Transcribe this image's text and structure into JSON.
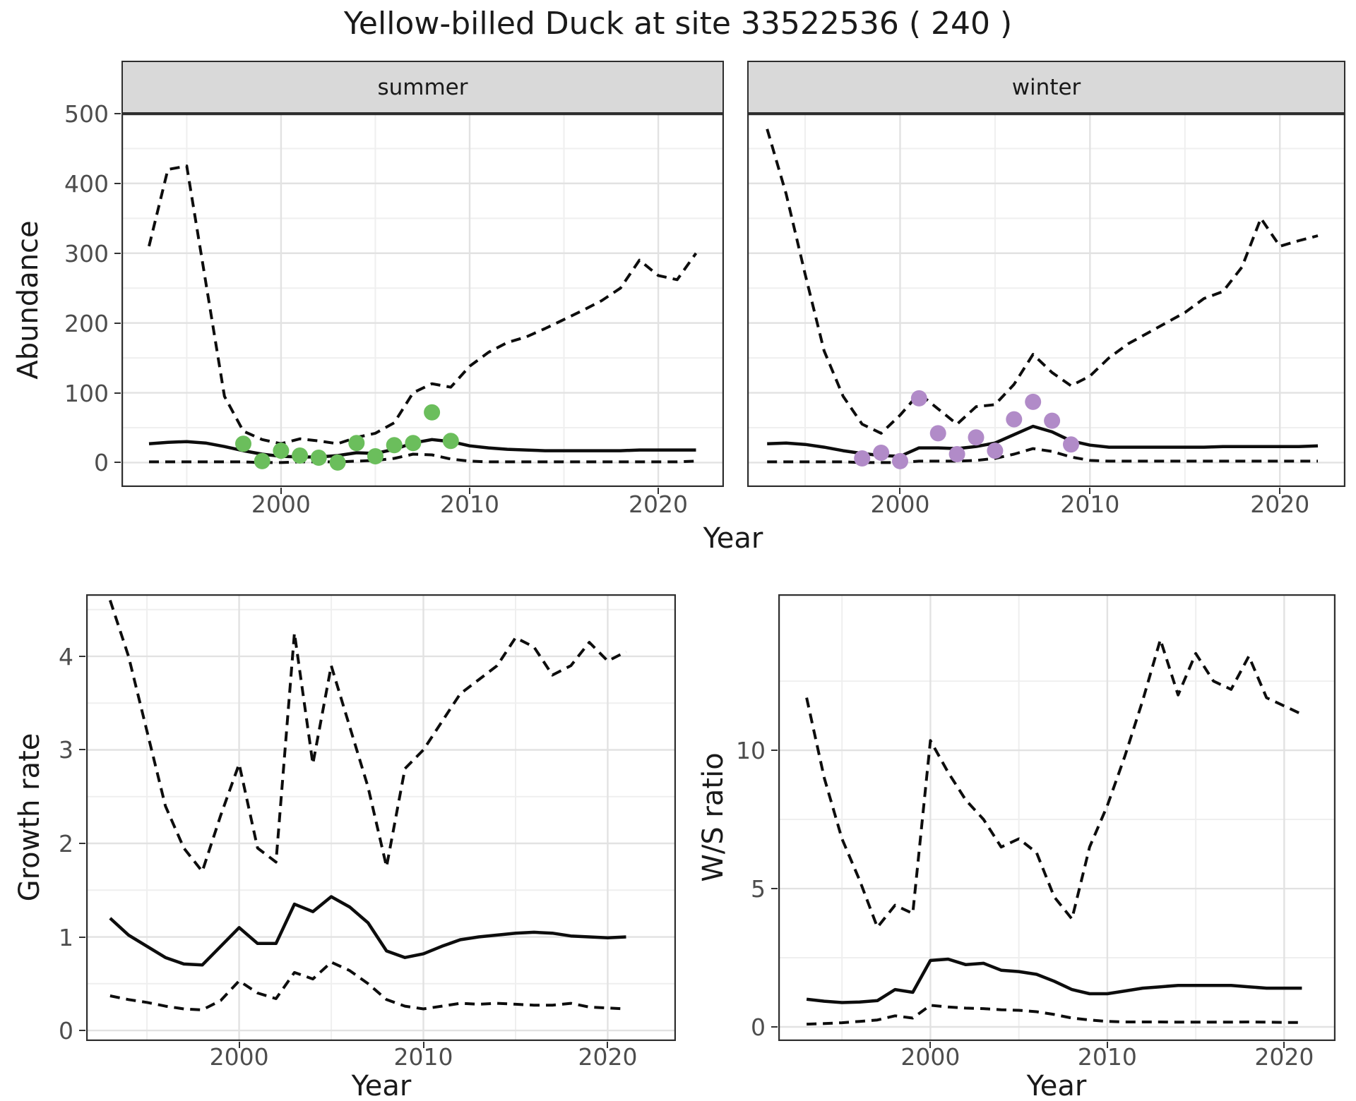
{
  "title": "Yellow-billed Duck at site 33522536 ( 240 )",
  "axis_titles": {
    "abundance": "Abundance",
    "year": "Year",
    "growth": "Growth rate",
    "ws": "W/S ratio"
  },
  "colors": {
    "summer_points": "#6bbe5c",
    "winter_points": "#b18bc8",
    "line": "#0d0d0d",
    "panel_border": "#2e2e2e",
    "strip_background": "#d9d9d9",
    "grid_major": "#e2e2e2",
    "grid_minor": "#efefef",
    "tick_label": "#4d4d4d",
    "axis_title": "#1a1a1a"
  },
  "chart_data": [
    {
      "id": "abundance_summer",
      "type": "line",
      "facet_label": "summer",
      "ylabel": "Abundance",
      "xlabel": "Year",
      "x_ticks": [
        2000,
        2010,
        2020
      ],
      "x_minor": [
        1995,
        2005,
        2015
      ],
      "y_ticks": [
        0,
        100,
        200,
        300,
        400,
        500
      ],
      "y_minor": [
        50,
        150,
        250,
        350,
        450
      ],
      "xlim": [
        1991.5,
        2023.5
      ],
      "ylim": [
        0,
        500
      ],
      "years": [
        1993,
        1994,
        1995,
        1996,
        1997,
        1998,
        1999,
        2000,
        2001,
        2002,
        2003,
        2004,
        2005,
        2006,
        2007,
        2008,
        2009,
        2010,
        2011,
        2012,
        2013,
        2014,
        2015,
        2016,
        2017,
        2018,
        2019,
        2020,
        2021,
        2022
      ],
      "upper_ci": [
        310,
        420,
        425,
        260,
        95,
        45,
        33,
        27,
        34,
        31,
        27,
        36,
        42,
        57,
        100,
        113,
        108,
        138,
        158,
        172,
        180,
        192,
        205,
        218,
        232,
        250,
        290,
        268,
        262,
        300
      ],
      "median": [
        27,
        29,
        30,
        28,
        23,
        17,
        12,
        9,
        8,
        8,
        10,
        14,
        13,
        19,
        28,
        33,
        30,
        24,
        21,
        19,
        18,
        17,
        17,
        17,
        17,
        17,
        18,
        18,
        18,
        18
      ],
      "lower_ci": [
        1,
        1,
        1,
        1,
        1,
        1,
        0,
        0,
        1,
        1,
        1,
        2,
        3,
        6,
        12,
        11,
        5,
        2,
        1,
        1,
        1,
        1,
        1,
        1,
        1,
        1,
        1,
        1,
        1,
        2
      ],
      "obs_years": [
        1998,
        1999,
        2000,
        2001,
        2002,
        2003,
        2004,
        2005,
        2006,
        2007,
        2008,
        2009
      ],
      "obs_values": [
        27,
        2,
        17,
        10,
        7,
        0,
        28,
        9,
        25,
        28,
        72,
        31
      ],
      "obs_color_key": "summer_points"
    },
    {
      "id": "abundance_winter",
      "type": "line",
      "facet_label": "winter",
      "ylabel": "Abundance",
      "xlabel": "Year",
      "x_ticks": [
        2000,
        2010,
        2020
      ],
      "x_minor": [
        1995,
        2005,
        2015
      ],
      "y_ticks": [
        0,
        100,
        200,
        300,
        400,
        500
      ],
      "y_minor": [
        50,
        150,
        250,
        350,
        450
      ],
      "xlim": [
        1991.5,
        2023.5
      ],
      "ylim": [
        0,
        500
      ],
      "years": [
        1993,
        1994,
        1995,
        1996,
        1997,
        1998,
        1999,
        2000,
        2001,
        2002,
        2003,
        2004,
        2005,
        2006,
        2007,
        2008,
        2009,
        2010,
        2011,
        2012,
        2013,
        2014,
        2015,
        2016,
        2017,
        2018,
        2019,
        2020,
        2021,
        2022
      ],
      "upper_ci": [
        478,
        385,
        270,
        160,
        95,
        55,
        42,
        68,
        99,
        77,
        55,
        80,
        83,
        112,
        155,
        129,
        110,
        124,
        150,
        170,
        185,
        200,
        215,
        235,
        245,
        280,
        350,
        310,
        318,
        325
      ],
      "median": [
        27,
        28,
        26,
        22,
        17,
        13,
        10,
        9,
        21,
        21,
        20,
        23,
        28,
        40,
        52,
        44,
        31,
        25,
        22,
        22,
        22,
        22,
        22,
        22,
        23,
        23,
        23,
        23,
        23,
        24
      ],
      "lower_ci": [
        1,
        1,
        1,
        1,
        1,
        0,
        0,
        0,
        2,
        2,
        2,
        3,
        6,
        12,
        20,
        16,
        8,
        3,
        2,
        2,
        2,
        2,
        2,
        2,
        2,
        2,
        2,
        2,
        2,
        2
      ],
      "obs_years": [
        1998,
        1999,
        2000,
        2001,
        2002,
        2003,
        2004,
        2005,
        2006,
        2007,
        2008,
        2009
      ],
      "obs_values": [
        6,
        14,
        2,
        92,
        42,
        12,
        36,
        17,
        62,
        87,
        60,
        26
      ],
      "obs_color_key": "winter_points"
    },
    {
      "id": "growth_rate",
      "type": "line",
      "facet_label": "",
      "ylabel": "Growth rate",
      "xlabel": "Year",
      "x_ticks": [
        2000,
        2010,
        2020
      ],
      "x_minor": [
        1995,
        2005,
        2015
      ],
      "y_ticks": [
        0,
        1,
        2,
        3,
        4
      ],
      "y_minor": [
        0.5,
        1.5,
        2.5,
        3.5,
        4.5
      ],
      "xlim": [
        1991.7,
        2023.7
      ],
      "ylim": [
        0,
        4.6
      ],
      "years": [
        1993,
        1994,
        1995,
        1996,
        1997,
        1998,
        1999,
        2000,
        2001,
        2002,
        2003,
        2004,
        2005,
        2006,
        2007,
        2008,
        2009,
        2010,
        2011,
        2012,
        2013,
        2014,
        2015,
        2016,
        2017,
        2018,
        2019,
        2020,
        2021
      ],
      "upper_ci": [
        4.6,
        4.0,
        3.2,
        2.4,
        1.95,
        1.7,
        2.3,
        2.85,
        1.95,
        1.8,
        4.25,
        2.85,
        3.9,
        3.25,
        2.6,
        1.75,
        2.8,
        3.0,
        3.3,
        3.6,
        3.75,
        3.9,
        4.2,
        4.1,
        3.8,
        3.9,
        4.15,
        3.95,
        4.05
      ],
      "median": [
        1.2,
        1.02,
        0.9,
        0.78,
        0.71,
        0.7,
        0.9,
        1.1,
        0.93,
        0.93,
        1.35,
        1.27,
        1.43,
        1.32,
        1.15,
        0.85,
        0.78,
        0.82,
        0.9,
        0.97,
        1.0,
        1.02,
        1.04,
        1.05,
        1.04,
        1.01,
        1.0,
        0.99,
        1.0
      ],
      "lower_ci": [
        0.37,
        0.33,
        0.3,
        0.26,
        0.23,
        0.22,
        0.32,
        0.53,
        0.4,
        0.34,
        0.62,
        0.55,
        0.73,
        0.64,
        0.5,
        0.33,
        0.26,
        0.23,
        0.26,
        0.29,
        0.28,
        0.29,
        0.28,
        0.27,
        0.27,
        0.29,
        0.25,
        0.24,
        0.23
      ],
      "obs_years": [],
      "obs_values": [],
      "obs_color_key": ""
    },
    {
      "id": "ws_ratio",
      "type": "line",
      "facet_label": "",
      "ylabel": "W/S ratio",
      "xlabel": "Year",
      "x_ticks": [
        2000,
        2010,
        2020
      ],
      "x_minor": [
        1995,
        2005,
        2015
      ],
      "y_ticks": [
        0,
        5,
        10
      ],
      "y_minor": [
        2.5,
        7.5,
        12.5
      ],
      "xlim": [
        1991.4,
        2022.9
      ],
      "ylim": [
        0,
        14
      ],
      "years": [
        1993,
        1994,
        1995,
        1996,
        1997,
        1998,
        1999,
        2000,
        2001,
        2002,
        2003,
        2004,
        2005,
        2006,
        2007,
        2008,
        2009,
        2010,
        2011,
        2012,
        2013,
        2014,
        2015,
        2016,
        2017,
        2018,
        2019,
        2020,
        2021
      ],
      "upper_ci": [
        11.9,
        9.0,
        6.8,
        5.3,
        3.6,
        4.4,
        4.1,
        10.35,
        9.2,
        8.2,
        7.5,
        6.5,
        6.8,
        6.3,
        4.7,
        3.9,
        6.5,
        8.0,
        9.8,
        11.8,
        14.0,
        12.0,
        13.5,
        12.5,
        12.2,
        13.4,
        11.9,
        11.6,
        11.3
      ],
      "median": [
        1.0,
        0.93,
        0.88,
        0.9,
        0.95,
        1.35,
        1.25,
        2.4,
        2.45,
        2.25,
        2.3,
        2.05,
        2.0,
        1.9,
        1.65,
        1.35,
        1.2,
        1.2,
        1.3,
        1.4,
        1.45,
        1.5,
        1.5,
        1.5,
        1.5,
        1.45,
        1.4,
        1.4,
        1.4
      ],
      "lower_ci": [
        0.1,
        0.12,
        0.15,
        0.2,
        0.25,
        0.4,
        0.32,
        0.78,
        0.72,
        0.68,
        0.66,
        0.62,
        0.6,
        0.55,
        0.45,
        0.32,
        0.25,
        0.2,
        0.18,
        0.18,
        0.18,
        0.17,
        0.17,
        0.17,
        0.17,
        0.18,
        0.17,
        0.16,
        0.16
      ],
      "obs_years": [],
      "obs_values": [],
      "obs_color_key": ""
    }
  ]
}
